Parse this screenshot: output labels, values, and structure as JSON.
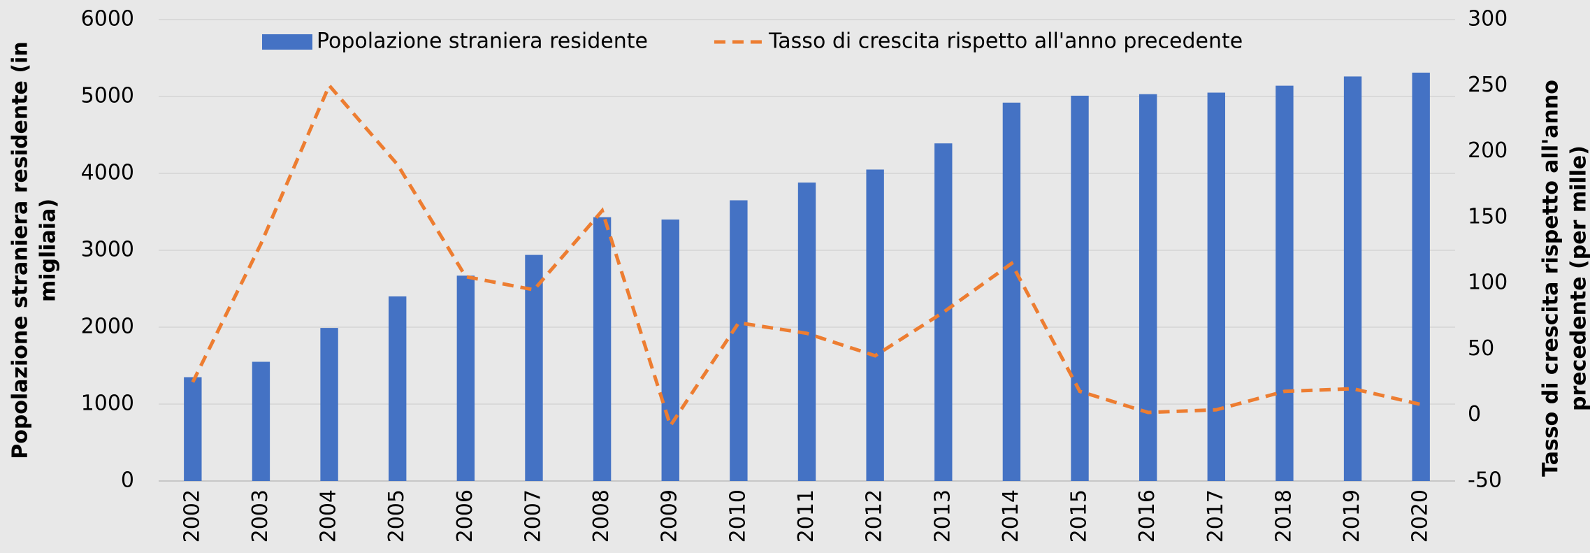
{
  "chart_data": {
    "type": "bar_line",
    "ylabel": [
      "Popolazione straniera residente (in",
      "migliaia)"
    ],
    "y2label": [
      "Tasso di crescita rispetto all'anno",
      "precedente (per mille)"
    ],
    "categories": [
      "2002",
      "2003",
      "2004",
      "2005",
      "2006",
      "2007",
      "2008",
      "2009",
      "2010",
      "2011",
      "2012",
      "2013",
      "2014",
      "2015",
      "2016",
      "2017",
      "2018",
      "2019",
      "2020"
    ],
    "series": [
      {
        "name": "Popolazione straniera residente",
        "type": "bar",
        "color": "#4472c4",
        "values": [
          1350,
          1550,
          1990,
          2400,
          2670,
          2940,
          3430,
          3400,
          3650,
          3880,
          4050,
          4390,
          4920,
          5010,
          5030,
          5050,
          5140,
          5260,
          5310
        ]
      },
      {
        "name": "Tasso di crescita rispetto all'anno precedente",
        "type": "line",
        "color": "#ed7d31",
        "axis": "y2",
        "dashed": true,
        "values": [
          25,
          130,
          250,
          190,
          105,
          95,
          155,
          -8,
          70,
          62,
          45,
          78,
          115,
          18,
          2,
          4,
          18,
          20,
          8
        ]
      }
    ],
    "ylim": [
      0,
      6000
    ],
    "yticks": [
      0,
      1000,
      2000,
      3000,
      4000,
      5000,
      6000
    ],
    "y2lim": [
      -50,
      300
    ],
    "y2ticks": [
      -50,
      0,
      50,
      100,
      150,
      200,
      250,
      300
    ],
    "grid": true,
    "legend": "top"
  }
}
